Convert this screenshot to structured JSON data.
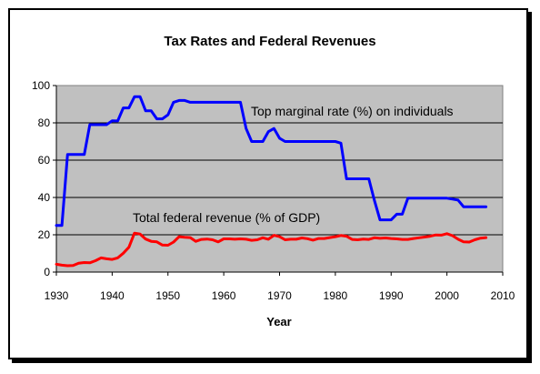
{
  "chart_data": {
    "type": "line",
    "title": "Tax Rates and Federal Revenues",
    "xlabel": "Year",
    "ylabel": "",
    "xlim": [
      1930,
      2010
    ],
    "ylim": [
      0,
      100
    ],
    "x_ticks": [
      1930,
      1940,
      1950,
      1960,
      1970,
      1980,
      1990,
      2000,
      2010
    ],
    "y_ticks": [
      0,
      20,
      40,
      60,
      80,
      100
    ],
    "grid": "horizontal",
    "plot_background": "#c0c0c0",
    "series": [
      {
        "name": "Top marginal rate (%) on individuals",
        "color": "#0000ff",
        "x": [
          1930,
          1931,
          1932,
          1933,
          1934,
          1935,
          1936,
          1937,
          1938,
          1939,
          1940,
          1941,
          1942,
          1943,
          1944,
          1945,
          1946,
          1947,
          1948,
          1949,
          1950,
          1951,
          1952,
          1953,
          1954,
          1955,
          1956,
          1957,
          1958,
          1959,
          1960,
          1961,
          1962,
          1963,
          1964,
          1965,
          1966,
          1967,
          1968,
          1969,
          1970,
          1971,
          1972,
          1973,
          1974,
          1975,
          1976,
          1977,
          1978,
          1979,
          1980,
          1981,
          1982,
          1983,
          1984,
          1985,
          1986,
          1987,
          1988,
          1989,
          1990,
          1991,
          1992,
          1993,
          1994,
          1995,
          1996,
          1997,
          1998,
          1999,
          2000,
          2001,
          2002,
          2003,
          2004,
          2005,
          2006,
          2007
        ],
        "values": [
          25,
          25,
          63,
          63,
          63,
          63,
          79,
          79,
          79,
          79,
          81.1,
          81,
          88,
          88,
          94,
          94,
          86.45,
          86.45,
          82.13,
          82.13,
          84.36,
          91,
          92,
          92,
          91,
          91,
          91,
          91,
          91,
          91,
          91,
          91,
          91,
          91,
          77,
          70,
          70,
          70,
          75.25,
          77,
          71.75,
          70,
          70,
          70,
          70,
          70,
          70,
          70,
          70,
          70,
          70,
          69.13,
          50,
          50,
          50,
          50,
          50,
          38.5,
          28,
          28,
          28,
          31,
          31,
          39.6,
          39.6,
          39.6,
          39.6,
          39.6,
          39.6,
          39.6,
          39.6,
          39.1,
          38.6,
          35,
          35,
          35,
          35,
          35
        ]
      },
      {
        "name": "Total federal revenue (% of GDP)",
        "color": "#ff0000",
        "x": [
          1930,
          1931,
          1932,
          1933,
          1934,
          1935,
          1936,
          1937,
          1938,
          1939,
          1940,
          1941,
          1942,
          1943,
          1944,
          1945,
          1946,
          1947,
          1948,
          1949,
          1950,
          1951,
          1952,
          1953,
          1954,
          1955,
          1956,
          1957,
          1958,
          1959,
          1960,
          1961,
          1962,
          1963,
          1964,
          1965,
          1966,
          1967,
          1968,
          1969,
          1970,
          1971,
          1972,
          1973,
          1974,
          1975,
          1976,
          1977,
          1978,
          1979,
          1980,
          1981,
          1982,
          1983,
          1984,
          1985,
          1986,
          1987,
          1988,
          1989,
          1990,
          1991,
          1992,
          1993,
          1994,
          1995,
          1996,
          1997,
          1998,
          1999,
          2000,
          2001,
          2002,
          2003,
          2004,
          2005,
          2006,
          2007
        ],
        "values": [
          4.2,
          3.7,
          3.4,
          3.5,
          4.8,
          5.1,
          5.0,
          6.1,
          7.6,
          7.1,
          6.8,
          7.6,
          10.1,
          13.3,
          20.9,
          20.4,
          17.7,
          16.5,
          16.2,
          14.5,
          14.4,
          16.1,
          19.0,
          18.7,
          18.5,
          16.5,
          17.5,
          17.7,
          17.3,
          16.2,
          17.8,
          17.8,
          17.6,
          17.8,
          17.6,
          17.0,
          17.3,
          18.4,
          17.6,
          19.7,
          19.0,
          17.3,
          17.6,
          17.6,
          18.3,
          17.9,
          17.1,
          18.0,
          18.0,
          18.5,
          19.0,
          19.6,
          19.2,
          17.5,
          17.3,
          17.7,
          17.5,
          18.4,
          18.1,
          18.3,
          18.0,
          17.8,
          17.5,
          17.5,
          18.0,
          18.4,
          18.8,
          19.2,
          19.9,
          19.8,
          20.6,
          19.5,
          17.6,
          16.2,
          16.1,
          17.3,
          18.2,
          18.5
        ]
      }
    ]
  }
}
